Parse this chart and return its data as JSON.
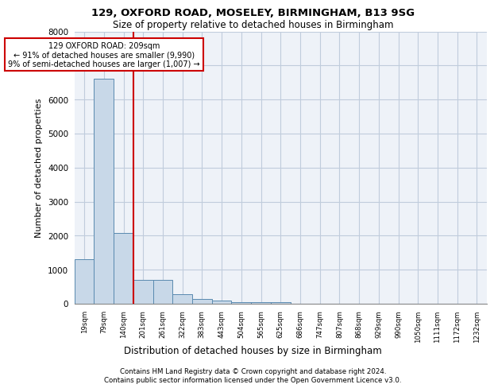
{
  "title1": "129, OXFORD ROAD, MOSELEY, BIRMINGHAM, B13 9SG",
  "title2": "Size of property relative to detached houses in Birmingham",
  "dist_label": "Distribution of detached houses by size in Birmingham",
  "ylabel": "Number of detached properties",
  "footnote1": "Contains HM Land Registry data © Crown copyright and database right 2024.",
  "footnote2": "Contains public sector information licensed under the Open Government Licence v3.0.",
  "bin_labels": [
    "19sqm",
    "79sqm",
    "140sqm",
    "201sqm",
    "261sqm",
    "322sqm",
    "383sqm",
    "443sqm",
    "504sqm",
    "565sqm",
    "625sqm",
    "686sqm",
    "747sqm",
    "807sqm",
    "868sqm",
    "929sqm",
    "990sqm",
    "1050sqm",
    "1111sqm",
    "1172sqm",
    "1232sqm"
  ],
  "bar_heights": [
    1300,
    6600,
    2075,
    700,
    700,
    275,
    140,
    90,
    50,
    50,
    50,
    0,
    0,
    0,
    0,
    0,
    0,
    0,
    0,
    0,
    0
  ],
  "bar_color": "#c8d8e8",
  "bar_edge_color": "#5a8ab0",
  "grid_color": "#c0ccdc",
  "background_color": "#eef2f8",
  "vline_x": 3.0,
  "vline_color": "#cc0000",
  "annotation_text": "129 OXFORD ROAD: 209sqm\n← 91% of detached houses are smaller (9,990)\n9% of semi-detached houses are larger (1,007) →",
  "annotation_box_color": "#cc0000",
  "ylim": [
    0,
    8000
  ],
  "yticks": [
    0,
    1000,
    2000,
    3000,
    4000,
    5000,
    6000,
    7000,
    8000
  ]
}
